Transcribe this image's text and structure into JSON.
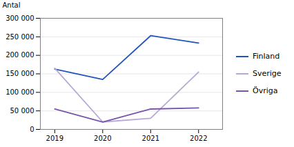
{
  "chart_data": {
    "type": "line",
    "x": [
      2019,
      2020,
      2021,
      2022
    ],
    "series": [
      {
        "name": "Finland",
        "color": "#2255bb",
        "values": [
          163000,
          135000,
          253000,
          233000
        ]
      },
      {
        "name": "Sverige",
        "color": "#b8a8d8",
        "values": [
          165000,
          20000,
          30000,
          155000
        ]
      },
      {
        "name": "Övriga",
        "color": "#7755aa",
        "values": [
          55000,
          20000,
          55000,
          58000
        ]
      }
    ],
    "ylabel": "Antal",
    "xlim": [
      2018.7,
      2022.5
    ],
    "xticks": [
      2019,
      2020,
      2021,
      2022
    ],
    "ylim": [
      0,
      300000
    ],
    "yticks": [
      0,
      {
        "value": 50000,
        "label": "50 000"
      },
      {
        "value": 100000,
        "label": "100 000"
      },
      {
        "value": 150000,
        "label": "150 000"
      },
      {
        "value": 200000,
        "label": "200 000"
      },
      {
        "value": 250000,
        "label": "250 000"
      },
      {
        "value": 300000,
        "label": "300 000"
      }
    ],
    "grid": true,
    "legend": "right"
  }
}
